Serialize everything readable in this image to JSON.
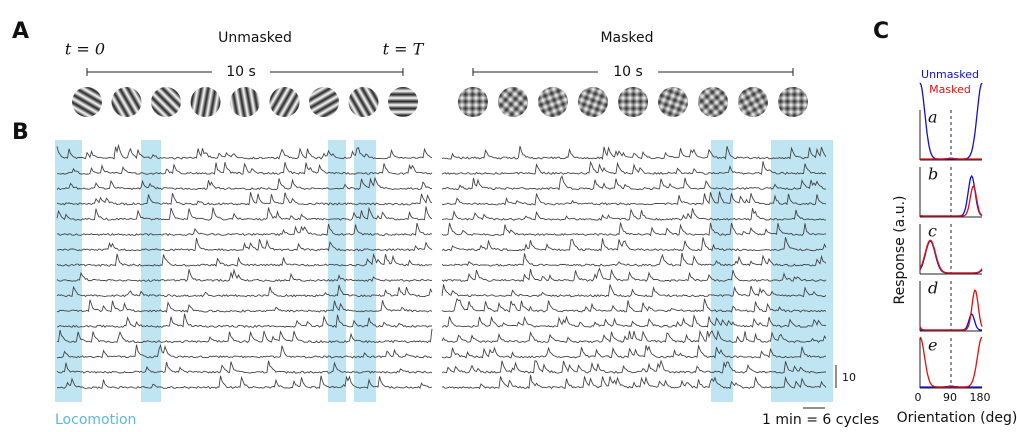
{
  "panel_a": {
    "label": "A",
    "unmasked": {
      "title": "Unmasked",
      "start": "t = 0",
      "end": "t = T",
      "duration": "10 s"
    },
    "masked": {
      "title": "Masked",
      "duration": "10 s"
    }
  },
  "panel_b": {
    "label": "B",
    "locomotion": "Locomotion",
    "scale_vertical": "10",
    "scale_horizontal": "1 min = 6 cycles"
  },
  "panel_c": {
    "label": "C",
    "legend": [
      "Unmasked",
      "Masked"
    ],
    "cells": [
      "a",
      "b",
      "c",
      "d",
      "e"
    ],
    "x_ticks": [
      "0",
      "90",
      "180"
    ],
    "x_label": "Orientation (deg)",
    "y_label": "Response (a.u.)"
  }
}
